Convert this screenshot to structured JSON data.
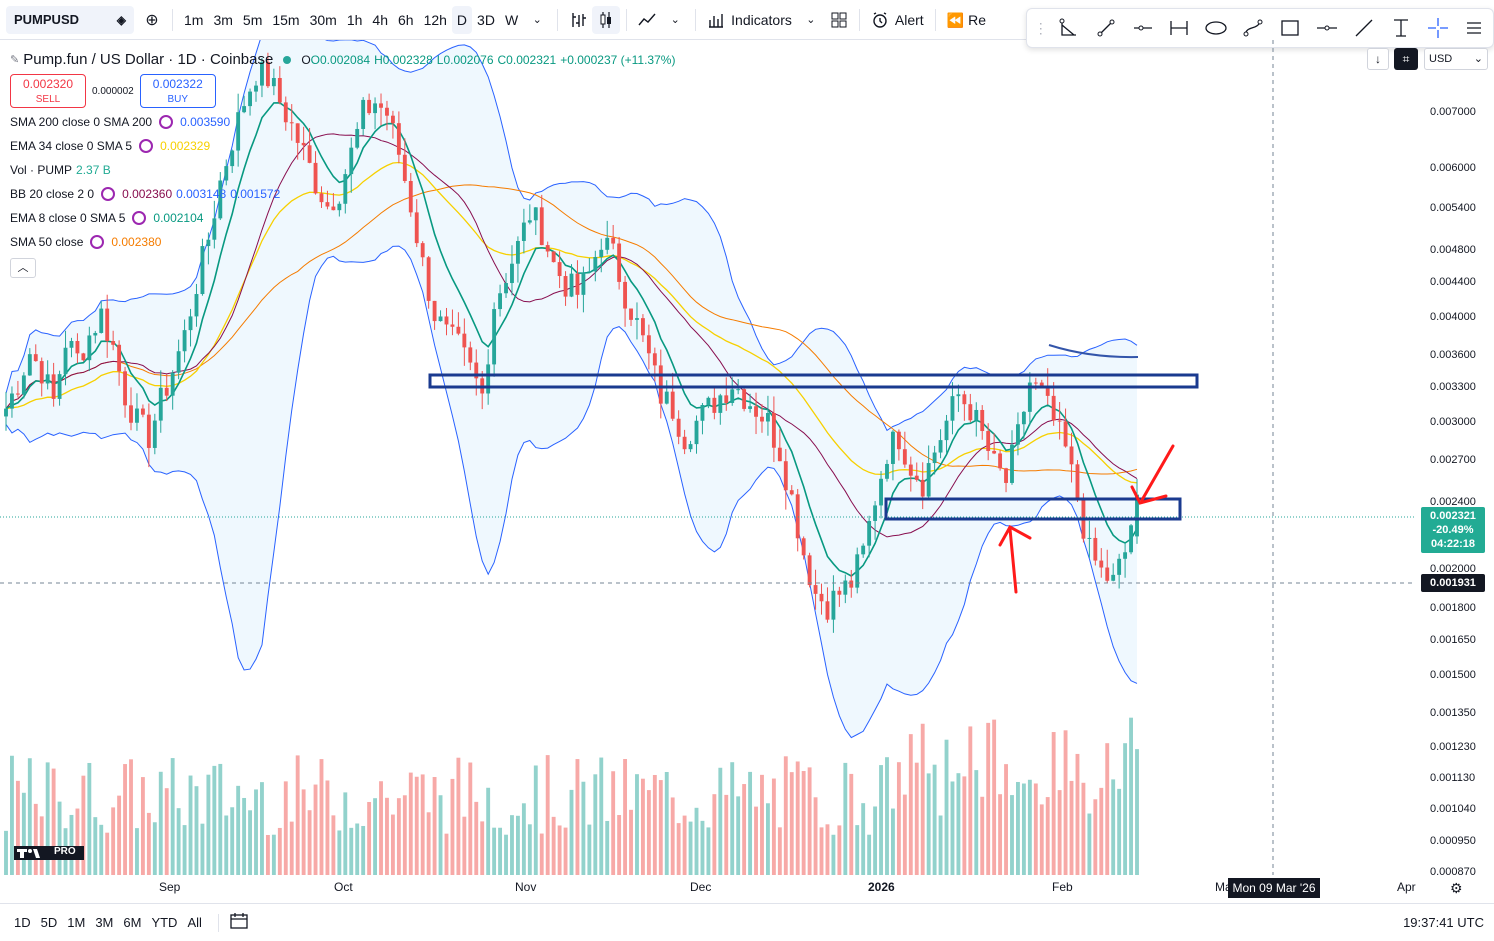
{
  "toolbar": {
    "symbol": "PUMPUSD",
    "intervals": [
      "1m",
      "3m",
      "5m",
      "15m",
      "30m",
      "1h",
      "4h",
      "6h",
      "12h",
      "D",
      "3D",
      "W"
    ],
    "active_interval": "D",
    "indicators_label": "Indicators",
    "alert_label": "Alert",
    "replay_label": "Re"
  },
  "drawing_toolbar": {
    "tools": [
      "angle-tool-icon",
      "trend-line-icon",
      "horizontal-ray-icon",
      "range-icon",
      "ellipse-icon",
      "curve-icon",
      "rectangle-icon",
      "horizontal-line-icon",
      "line-icon",
      "text-tool-icon",
      "crosshair-icon",
      "menu-icon"
    ]
  },
  "legend": {
    "title": "Pump.fun / US Dollar · 1D · Coinbase",
    "open": "O0.002084",
    "high": "H0.002328",
    "low": "L0.002076",
    "close": "C0.002321",
    "change": "+0.000237 (+11.37%)",
    "sell_price": "0.002320",
    "sell_label": "SELL",
    "spread": "0.000002",
    "buy_price": "0.002322",
    "buy_label": "BUY",
    "indicators": [
      {
        "label": "SMA 200 close 0 SMA 200",
        "values": [
          "0.003590"
        ],
        "colors": [
          "#2962ff"
        ]
      },
      {
        "label": "EMA 34 close 0 SMA 5",
        "values": [
          "0.002329"
        ],
        "colors": [
          "#f7d000"
        ]
      },
      {
        "label": "Vol · PUMP",
        "values": [
          "2.37 B"
        ],
        "colors": [
          "#22ab94"
        ]
      },
      {
        "label": "BB 20 close 2 0",
        "values": [
          "0.002360",
          "0.003148",
          "0.001572"
        ],
        "colors": [
          "#880e4f",
          "#2962ff",
          "#2962ff"
        ]
      },
      {
        "label": "EMA 8 close 0 SMA 5",
        "values": [
          "0.002104"
        ],
        "colors": [
          "#089981"
        ]
      },
      {
        "label": "SMA 50 close",
        "values": [
          "0.002380"
        ],
        "colors": [
          "#f57c00"
        ]
      }
    ]
  },
  "price_axis": {
    "currency": "USD",
    "labels": [
      "0.007000",
      "0.006000",
      "0.005400",
      "0.004800",
      "0.004400",
      "0.004000",
      "0.003600",
      "0.003300",
      "0.003000",
      "0.002700",
      "0.002400",
      "0.002000",
      "0.001800",
      "0.001650",
      "0.001500",
      "0.001350",
      "0.001230",
      "0.001130",
      "0.001040",
      "0.000950",
      "0.000870"
    ],
    "last_price": "0.002321",
    "last_change": "-20.49%",
    "countdown": "04:22:18",
    "crosshair_price": "0.001931"
  },
  "time_axis": {
    "labels": [
      "Sep",
      "Oct",
      "Nov",
      "Dec",
      "2026",
      "Feb",
      "Mar",
      "Apr"
    ],
    "crosshair_date": "Mon 09 Mar '26"
  },
  "bottom": {
    "ranges": [
      "1D",
      "5D",
      "1M",
      "3M",
      "6M",
      "YTD",
      "All"
    ],
    "clock": "19:37:41 UTC"
  },
  "logo": {
    "text": "PRO"
  },
  "colors": {
    "up": "#26a69a",
    "down": "#ef5350",
    "annotation_box": "#1a3a8f",
    "arrow": "#ff1a1a",
    "accent": "#2962ff"
  },
  "chart_data": {
    "type": "candlestick",
    "symbol": "PUMPUSD",
    "interval": "1D",
    "x_range": [
      "Aug",
      "Feb"
    ],
    "y_scale": "log",
    "y_range": [
      0.00087,
      0.0075
    ],
    "current": {
      "open": 0.002084,
      "high": 0.002328,
      "low": 0.002076,
      "close": 0.002321
    },
    "key_levels": {
      "resistance_zone": [
        0.00325,
        0.00335
      ],
      "support_zone": [
        0.00228,
        0.00245
      ]
    },
    "approx_closes": [
      0.0029,
      0.0031,
      0.00335,
      0.0032,
      0.00295,
      0.00345,
      0.0033,
      0.0035,
      0.0037,
      0.0034,
      0.003,
      0.0028,
      0.0027,
      0.00295,
      0.0032,
      0.0035,
      0.004,
      0.0045,
      0.0052,
      0.0058,
      0.0064,
      0.0069,
      0.0068,
      0.0064,
      0.006,
      0.0056,
      0.0052,
      0.0049,
      0.0051,
      0.0056,
      0.0062,
      0.0064,
      0.0062,
      0.0056,
      0.0049,
      0.0042,
      0.0037,
      0.0035,
      0.0034,
      0.0032,
      0.003,
      0.0038,
      0.0041,
      0.0044,
      0.0048,
      0.0046,
      0.0042,
      0.004,
      0.0039,
      0.0041,
      0.0045,
      0.0043,
      0.0039,
      0.0036,
      0.0033,
      0.003,
      0.0029,
      0.0027,
      0.0028,
      0.0029,
      0.003,
      0.0031,
      0.003,
      0.0029,
      0.0028,
      0.0026,
      0.0023,
      0.002,
      0.0018,
      0.00175,
      0.0018,
      0.00185,
      0.002,
      0.0023,
      0.0026,
      0.0027,
      0.0025,
      0.0024,
      0.0026,
      0.0028,
      0.003,
      0.0029,
      0.0027,
      0.0025,
      0.0024,
      0.0027,
      0.0031,
      0.003,
      0.0028,
      0.0026,
      0.0023,
      0.002,
      0.0019,
      0.00185,
      0.002,
      0.00232
    ]
  }
}
